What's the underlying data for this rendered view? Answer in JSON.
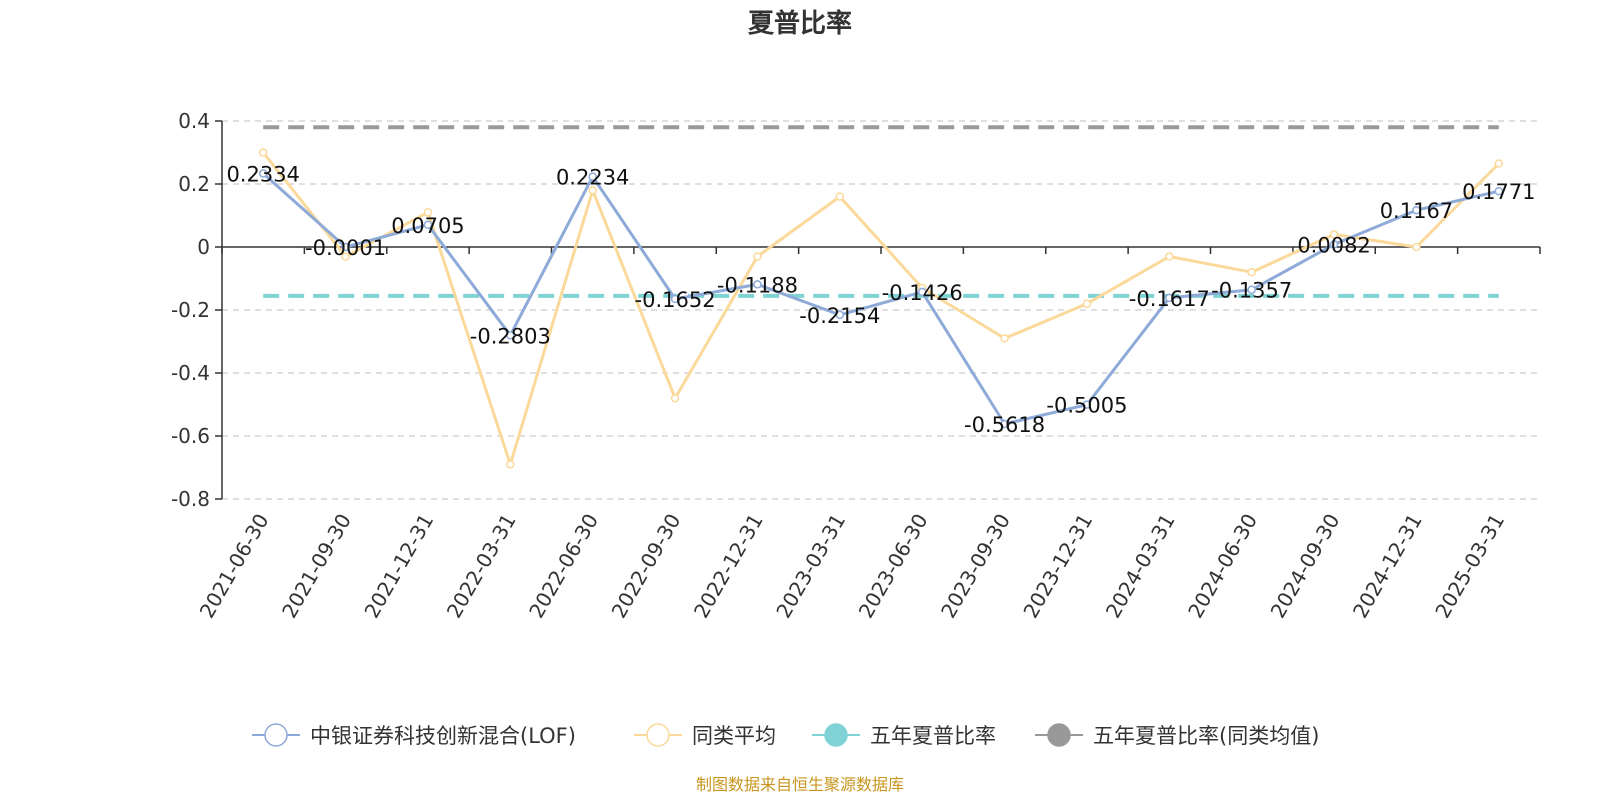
{
  "chart_data": {
    "type": "line",
    "title": "夏普比率",
    "categories": [
      "2021-06-30",
      "2021-09-30",
      "2021-12-31",
      "2022-03-31",
      "2022-06-30",
      "2022-09-30",
      "2022-12-31",
      "2023-03-31",
      "2023-06-30",
      "2023-09-30",
      "2023-12-31",
      "2024-03-31",
      "2024-06-30",
      "2024-09-30",
      "2024-12-31",
      "2025-03-31"
    ],
    "ylim": [
      -0.8,
      0.4
    ],
    "yticks": [
      "0.4",
      "0.2",
      "0",
      "-0.2",
      "-0.4",
      "-0.6",
      "-0.8"
    ],
    "ytick_values": [
      0.4,
      0.2,
      0,
      -0.2,
      -0.4,
      -0.6,
      -0.8
    ],
    "grid": true,
    "legend_position": "bottom",
    "series": [
      {
        "name": "中银证券科技创新混合(LOF)",
        "color": "#8eaad8",
        "values": [
          0.2334,
          -0.0001,
          0.0705,
          -0.2803,
          0.2234,
          -0.1652,
          -0.1188,
          -0.2154,
          -0.1426,
          -0.5618,
          -0.5005,
          -0.1617,
          -0.1357,
          0.0082,
          0.1167,
          0.1771
        ],
        "labels": [
          "0.2334",
          "-0.0001",
          "0.0705",
          "-0.2803",
          "0.2234",
          "-0.1652",
          "-0.1188",
          "-0.2154",
          "-0.1426",
          "-0.5618",
          "-0.5005",
          "-0.1617",
          "-0.1357",
          "0.0082",
          "0.1167",
          "0.1771"
        ]
      },
      {
        "name": "同类平均",
        "color": "#fbd99a",
        "values": [
          0.3,
          -0.03,
          0.11,
          -0.69,
          0.18,
          -0.48,
          -0.03,
          0.16,
          -0.13,
          -0.29,
          -0.18,
          -0.03,
          -0.08,
          0.04,
          0.0,
          0.265
        ]
      },
      {
        "name": "五年夏普比率",
        "color": "#7fd3d4",
        "constant": -0.155
      },
      {
        "name": "五年夏普比率(同类均值)",
        "color": "#999999",
        "constant": 0.38
      }
    ],
    "source": "制图数据来自恒生聚源数据库"
  }
}
